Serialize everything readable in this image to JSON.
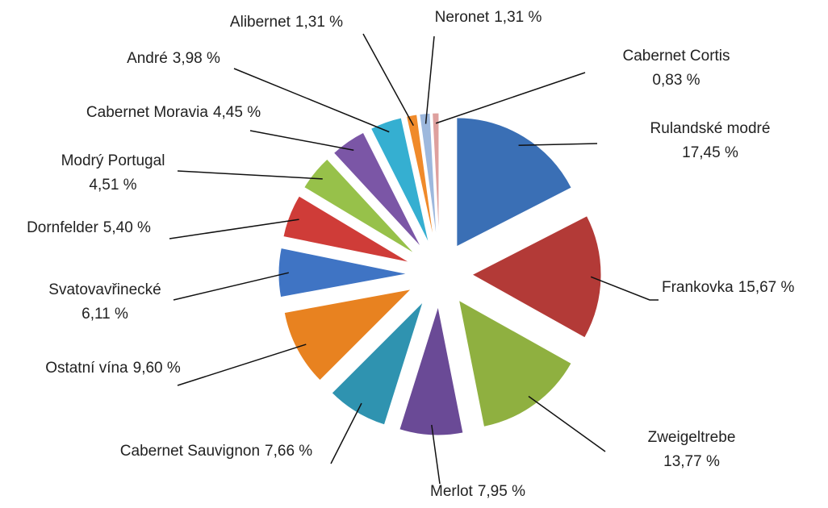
{
  "chart_data": {
    "type": "pie",
    "categories": [
      "Rulandské modré",
      "Frankovka",
      "Zweigeltrebe",
      "Merlot",
      "Cabernet Sauvignon",
      "Ostatní vína",
      "Svatovavřinecké",
      "Dornfelder",
      "Modrý Portugal",
      "Cabernet Moravia",
      "André",
      "Alibernet",
      "Neronet",
      "Cabernet Cortis"
    ],
    "values": [
      17.45,
      15.67,
      13.77,
      7.95,
      7.66,
      9.6,
      6.11,
      5.4,
      4.51,
      4.45,
      3.98,
      1.31,
      1.31,
      0.83
    ],
    "value_labels": [
      "17,45 %",
      "15,67 %",
      "13,77 %",
      "7,95 %",
      "7,66 %",
      "9,60 %",
      "6,11 %",
      "5,40 %",
      "4,51 %",
      "4,45 %",
      "3,98 %",
      "1,31 %",
      "1,31 %",
      "0,83 %"
    ],
    "colors": [
      "#3a6fb5",
      "#b33a37",
      "#8fb040",
      "#6a4a96",
      "#2f93b0",
      "#e88220",
      "#3f74c4",
      "#cf3c38",
      "#97c14a",
      "#7b56a6",
      "#35afd1",
      "#f08a2a",
      "#9db8dd",
      "#dea09e"
    ]
  }
}
